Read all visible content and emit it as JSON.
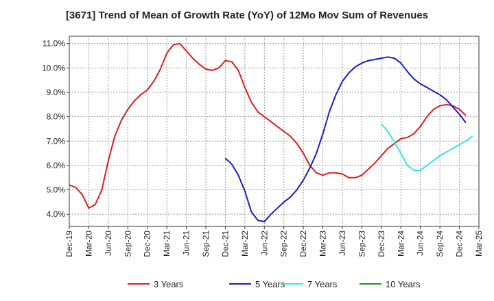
{
  "chart_data": {
    "type": "line",
    "title": "[3671]  Trend of Mean of Growth Rate (YoY) of 12Mo Mov Sum of Revenues",
    "xlabel": "",
    "ylabel": "",
    "x_ticks": [
      "Dec-19",
      "Mar-20",
      "Jun-20",
      "Sep-20",
      "Dec-20",
      "Mar-21",
      "Jun-21",
      "Sep-21",
      "Dec-21",
      "Mar-22",
      "Jun-22",
      "Sep-22",
      "Dec-22",
      "Mar-23",
      "Jun-23",
      "Sep-23",
      "Dec-23",
      "Mar-24",
      "Jun-24",
      "Sep-24",
      "Dec-24",
      "Mar-25"
    ],
    "x_range_months": [
      0,
      63
    ],
    "ylim": [
      3.5,
      11.3
    ],
    "y_ticks": [
      4.0,
      5.0,
      6.0,
      7.0,
      8.0,
      9.0,
      10.0,
      11.0
    ],
    "y_tick_labels": [
      "4.0%",
      "5.0%",
      "6.0%",
      "7.0%",
      "8.0%",
      "9.0%",
      "10.0%",
      "11.0%"
    ],
    "grid": true,
    "legend_position": "bottom",
    "series": [
      {
        "name": "3 Years",
        "color": "#e01b1b",
        "start_month": 0,
        "values": [
          5.2,
          5.1,
          4.8,
          4.25,
          4.4,
          5.0,
          6.2,
          7.2,
          7.85,
          8.3,
          8.65,
          8.9,
          9.1,
          9.45,
          9.95,
          10.6,
          10.95,
          11.0,
          10.7,
          10.4,
          10.15,
          9.95,
          9.9,
          10.0,
          10.3,
          10.25,
          9.9,
          9.2,
          8.6,
          8.2,
          8.0,
          7.8,
          7.6,
          7.4,
          7.2,
          6.9,
          6.5,
          6.0,
          5.7,
          5.6,
          5.7,
          5.7,
          5.65,
          5.5,
          5.5,
          5.6,
          5.85,
          6.1,
          6.4,
          6.7,
          6.9,
          7.1,
          7.15,
          7.3,
          7.6,
          8.0,
          8.3,
          8.45,
          8.5,
          8.45,
          8.3,
          8.05
        ]
      },
      {
        "name": "5 Years",
        "color": "#1a1ac8",
        "start_month": 24,
        "values": [
          6.3,
          6.05,
          5.6,
          4.95,
          4.1,
          3.75,
          3.7,
          4.0,
          4.25,
          4.5,
          4.7,
          5.0,
          5.4,
          5.9,
          6.5,
          7.3,
          8.2,
          8.9,
          9.45,
          9.8,
          10.05,
          10.2,
          10.3,
          10.35,
          10.4,
          10.45,
          10.4,
          10.2,
          9.85,
          9.55,
          9.35,
          9.2,
          9.05,
          8.9,
          8.7,
          8.4,
          8.1,
          7.75
        ]
      },
      {
        "name": "7 Years",
        "color": "#2ee8e8",
        "start_month": 48,
        "values": [
          7.7,
          7.4,
          6.95,
          6.5,
          6.0,
          5.8,
          5.8,
          6.0,
          6.2,
          6.4,
          6.55,
          6.7,
          6.85,
          7.0,
          7.2
        ]
      },
      {
        "name": "10 Years",
        "color": "#1a9a1a",
        "start_month": 0,
        "values": []
      }
    ]
  }
}
